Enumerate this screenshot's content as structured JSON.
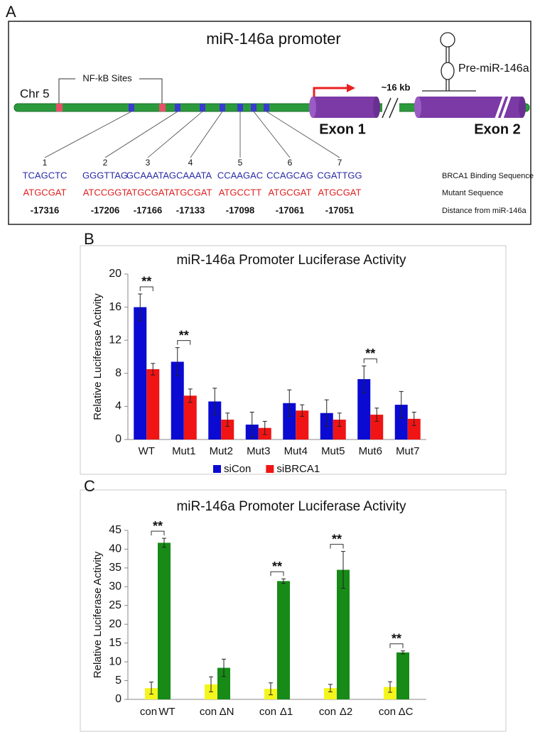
{
  "diagram": {
    "panel_label": "A",
    "title": "miR-146a promoter",
    "chromosome": "Chr 5",
    "nfkb_label": "NF-kB Sites",
    "gap_label": "~16 kb",
    "pre_mir_label": "Pre-miR-146a",
    "exon1_label": "Exon 1",
    "exon2_label": "Exon 2",
    "row_labels": [
      "BRCA1 Binding Sequence",
      "Mutant Sequence",
      "Distance from miR-146a"
    ],
    "sites": [
      {
        "number": 1,
        "binding": "TCAGCTC",
        "mutant": "ATGCGAT",
        "distance": -17316
      },
      {
        "number": 2,
        "binding": "GGGTTAG",
        "mutant": "ATCCGGT",
        "distance": -17206
      },
      {
        "number": 3,
        "binding": "GCAAATA",
        "mutant": "ATGCGAT",
        "distance": -17166
      },
      {
        "number": 4,
        "binding": "GCAAATA",
        "mutant": "ATGCGAT",
        "distance": -17133
      },
      {
        "number": 5,
        "binding": "CCAAGAC",
        "mutant": "ATGCCTT",
        "distance": -17098
      },
      {
        "number": 6,
        "binding": "CCAGCAG",
        "mutant": "ATGCGAT",
        "distance": -17061
      },
      {
        "number": 7,
        "binding": "CGATTGG",
        "mutant": "ATGCGAT",
        "distance": -17051
      }
    ]
  },
  "chart_data": [
    {
      "type": "bar",
      "panel_label": "B",
      "title": "miR-146a Promoter Luciferase Activity",
      "y_label": "Relative Luciferase Activity",
      "categories": [
        "WT",
        "Mut1",
        "Mut2",
        "Mut3",
        "Mut4",
        "Mut5",
        "Mut6",
        "Mut7"
      ],
      "series": [
        {
          "name": "siCon",
          "color": "#0a0ad2",
          "values": [
            16,
            9.4,
            4.6,
            1.8,
            4.4,
            3.2,
            7.3,
            4.2
          ],
          "errors": [
            1.6,
            1.7,
            1.6,
            1.5,
            1.6,
            1.6,
            1.6,
            1.6
          ]
        },
        {
          "name": "siBRCA1",
          "color": "#f01414",
          "values": [
            8.5,
            5.3,
            2.4,
            1.4,
            3.5,
            2.4,
            3.0,
            2.5
          ],
          "errors": [
            0.7,
            0.8,
            0.8,
            0.8,
            0.7,
            0.8,
            0.8,
            0.8
          ]
        }
      ],
      "ylim": [
        0,
        20
      ],
      "yticks": [
        0,
        4,
        8,
        12,
        16,
        20
      ],
      "legend": "bottom",
      "significant": [
        "WT",
        "Mut1",
        "Mut6"
      ],
      "significance_label": "**"
    },
    {
      "type": "bar",
      "panel_label": "C",
      "title": "miR-146a Promoter Luciferase Activity",
      "y_label": "Relative Luciferase Activity",
      "categories": [
        "con",
        "WT",
        "con",
        "ΔN",
        "con",
        "Δ1",
        "con",
        "Δ2",
        "con",
        "ΔC"
      ],
      "values": [
        3.0,
        41.7,
        4.0,
        8.4,
        2.8,
        31.5,
        3.0,
        34.5,
        3.3,
        12.5
      ],
      "errors": [
        1.6,
        1.2,
        2.0,
        2.3,
        1.6,
        0.6,
        1.0,
        4.9,
        1.4,
        0.4
      ],
      "colors": [
        "#f5f51e",
        "#178a17",
        "#f5f51e",
        "#178a17",
        "#f5f51e",
        "#178a17",
        "#f5f51e",
        "#178a17",
        "#f5f51e",
        "#178a17"
      ],
      "ylim": [
        0,
        45
      ],
      "yticks": [
        0,
        5,
        10,
        15,
        20,
        25,
        30,
        35,
        40,
        45
      ],
      "significant": [
        "WT",
        "Δ1",
        "Δ2",
        "ΔC"
      ],
      "significance_label": "**"
    }
  ]
}
